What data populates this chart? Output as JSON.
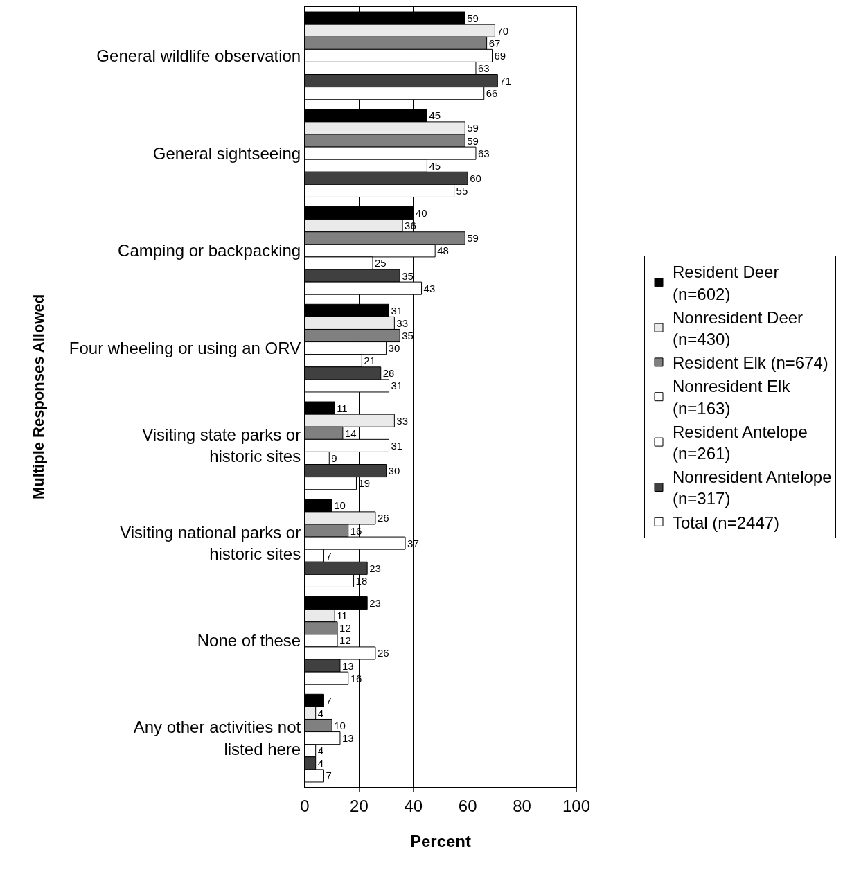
{
  "chart_data": {
    "type": "bar",
    "orientation": "horizontal",
    "xlabel": "Percent",
    "ylabel": "Multiple Responses Allowed",
    "categories": [
      "General wildlife observation",
      "General sightseeing",
      "Camping or backpacking",
      "Four wheeling or using an ORV",
      "Visiting state parks or historic sites",
      "Visiting national parks or historic sites",
      "None of these",
      "Any other activities not listed here"
    ],
    "series": [
      {
        "name": "Resident Deer (n=602)",
        "color": "#000000",
        "values": [
          59,
          45,
          40,
          31,
          11,
          10,
          23,
          7
        ]
      },
      {
        "name": "Nonresident Deer (n=430)",
        "color": "#eaeaea",
        "values": [
          70,
          59,
          36,
          33,
          33,
          26,
          11,
          4
        ]
      },
      {
        "name": "Resident Elk (n=674)",
        "color": "#808080",
        "values": [
          67,
          59,
          59,
          35,
          14,
          16,
          12,
          10
        ]
      },
      {
        "name": "Nonresident Elk (n=163)",
        "color": "#ffffff",
        "values": [
          69,
          63,
          48,
          30,
          31,
          37,
          12,
          13
        ]
      },
      {
        "name": "Resident Antelope (n=261)",
        "color": "#ffffff",
        "values": [
          63,
          45,
          25,
          21,
          9,
          7,
          26,
          4
        ]
      },
      {
        "name": "Nonresident Antelope (n=317)",
        "color": "#404040",
        "values": [
          71,
          60,
          35,
          28,
          30,
          23,
          13,
          4
        ]
      },
      {
        "name": "Total (n=2447)",
        "color": "#ffffff",
        "values": [
          66,
          55,
          43,
          31,
          19,
          18,
          16,
          7
        ]
      }
    ],
    "xlim": [
      0,
      100
    ],
    "xticks": [
      0,
      20,
      40,
      60,
      80,
      100
    ],
    "grid": "x",
    "legend": "right",
    "data_labels": true
  }
}
